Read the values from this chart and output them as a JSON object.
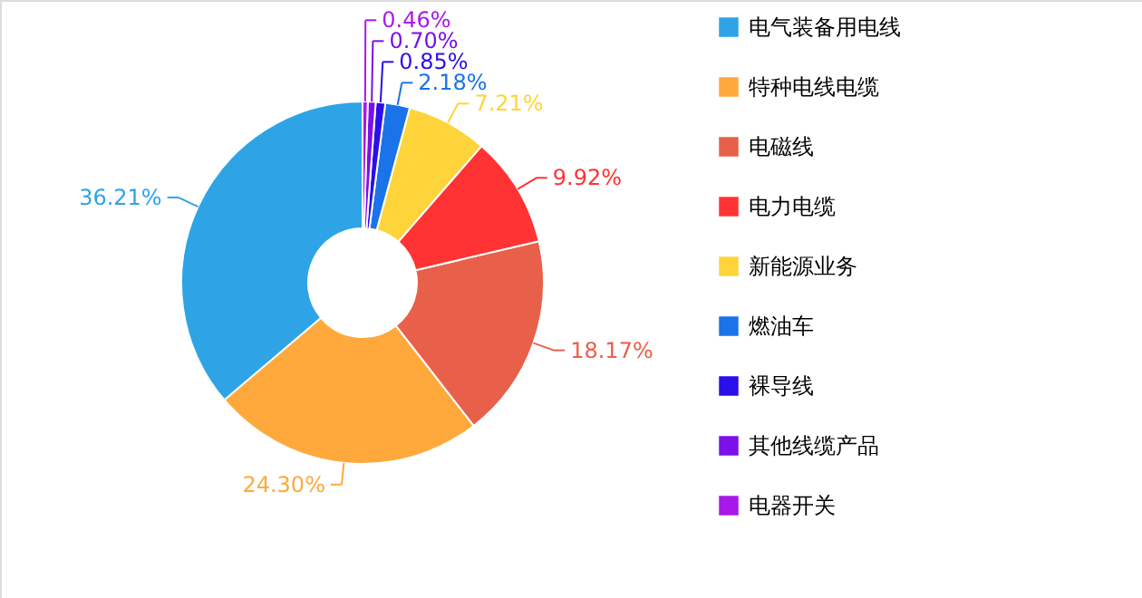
{
  "chart_data": {
    "type": "donut",
    "categories": [
      "电气装备用电线",
      "特种电线电缆",
      "电磁线",
      "电力电缆",
      "新能源业务",
      "燃油车",
      "裸导线",
      "其他线缆产品",
      "电器开关"
    ],
    "values": [
      36.21,
      24.3,
      18.17,
      9.92,
      7.21,
      2.18,
      0.85,
      0.7,
      0.46
    ],
    "value_labels": [
      "36.21%",
      "24.30%",
      "18.17%",
      "9.92%",
      "7.21%",
      "2.18%",
      "0.85%",
      "0.70%",
      "0.46%"
    ],
    "colors": [
      "#2ea4e6",
      "#ffa93c",
      "#e8604a",
      "#ff3333",
      "#ffd43b",
      "#1a73e8",
      "#2a0fe8",
      "#7b10e8",
      "#a818e8"
    ],
    "legend": "right"
  }
}
